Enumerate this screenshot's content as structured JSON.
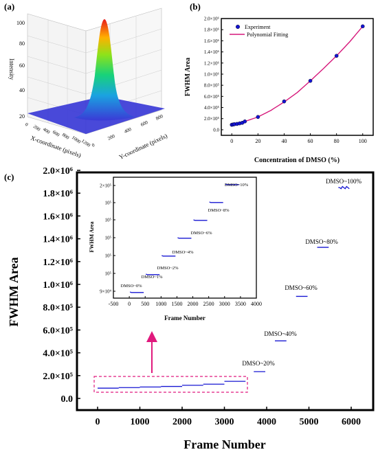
{
  "panels": {
    "a": {
      "label": "(a)",
      "zlabel": "Intensity",
      "xlabel": "X-coordinate (pixels)",
      "ylabel": "Y-coordinate (pixels)",
      "z_ticks": [
        "20",
        "40",
        "60",
        "80",
        "100"
      ],
      "x_ticks": [
        "0",
        "200",
        "400",
        "600",
        "800",
        "1000",
        "1200"
      ],
      "y_ticks": [
        "0",
        "200",
        "400",
        "600",
        "800"
      ]
    },
    "b": {
      "label": "(b)",
      "ylabel": "FWHM Area",
      "xlabel": "Concentration of DMSO (%)",
      "x_ticks": [
        "0",
        "20",
        "40",
        "60",
        "80",
        "100"
      ],
      "y_ticks": [
        "2.0×10⁶",
        "1.8×10⁶",
        "1.6×10⁶",
        "1.4×10⁶",
        "1.2×10⁶",
        "1.0×10⁶",
        "8.0×10⁵",
        "6.0×10⁵",
        "4.0×10⁵",
        "2.0×10⁵",
        "0.0"
      ],
      "legend": {
        "experiment": "Experiment",
        "fit": "Polynomial Fitting"
      }
    },
    "c": {
      "label": "(c)",
      "ylabel": "FWHM Area",
      "xlabel": "Frame Number",
      "x_ticks": [
        "0",
        "1000",
        "2000",
        "3000",
        "4000",
        "5000",
        "6000"
      ],
      "y_ticks": [
        "2.0×10⁶",
        "1.8×10⁶",
        "1.6×10⁶",
        "1.4×10⁶",
        "1.2×10⁶",
        "1.0×10⁶",
        "8.0×10⁵",
        "6.0×10⁵",
        "4.0×10⁵",
        "2.0×10⁵",
        "0.0"
      ],
      "step_labels": [
        "DMSO~20%",
        "DMSO~40%",
        "DMSO~60%",
        "DMSO~80%",
        "DMSO~100%"
      ],
      "inset": {
        "ylabel": "FWHM Area",
        "xlabel": "Frame Number",
        "x_ticks": [
          "-500",
          "0",
          "500",
          "1000",
          "1500",
          "2000",
          "2500",
          "3000",
          "3500",
          "4000"
        ],
        "y_ticks": [
          "9×10⁴",
          "10⁵",
          "10⁵",
          "10⁵",
          "10⁵",
          "10⁵",
          "10⁵",
          "10⁵",
          "2×10⁵"
        ],
        "step_labels": [
          "DMSO~0%",
          "DMSO~1%",
          "DMSO~2%",
          "DMSO~4%",
          "DMSO~6%",
          "DMSO~8%",
          "DMSO~10%"
        ]
      }
    }
  },
  "colors": {
    "series": "#1414d2",
    "fit": "#d6177a",
    "arrow": "#e0197d",
    "highlight": "#e0197d"
  },
  "chart_data": [
    {
      "type": "area",
      "panel": "a",
      "description_type": "3D Gaussian surface",
      "peak_intensity": 105,
      "baseline_intensity": 20,
      "xlim": [
        0,
        1200
      ],
      "ylim": [
        0,
        800
      ],
      "zlim": [
        20,
        100
      ]
    },
    {
      "type": "scatter",
      "panel": "b",
      "series": [
        {
          "name": "Experiment",
          "x": [
            0,
            1,
            2,
            4,
            6,
            8,
            10,
            20,
            40,
            60,
            80,
            100
          ],
          "y": [
            90000,
            95000,
            100000,
            105000,
            115000,
            125000,
            150000,
            230000,
            510000,
            880000,
            1330000,
            1860000
          ]
        },
        {
          "name": "Polynomial Fitting",
          "type": "line",
          "x": [
            0,
            10,
            20,
            30,
            40,
            50,
            60,
            70,
            80,
            90,
            100
          ],
          "y": [
            95000,
            150000,
            230000,
            350000,
            500000,
            670000,
            880000,
            1100000,
            1330000,
            1580000,
            1860000
          ]
        }
      ],
      "xlim": [
        -8,
        108
      ],
      "ylim": [
        -100000,
        2000000
      ],
      "legend_position": "top-left"
    },
    {
      "type": "line",
      "panel": "c",
      "segments": [
        {
          "x": [
            0,
            500
          ],
          "y": 90000
        },
        {
          "x": [
            500,
            1000
          ],
          "y": 95000
        },
        {
          "x": [
            1000,
            1500
          ],
          "y": 100000
        },
        {
          "x": [
            1500,
            2000
          ],
          "y": 105000
        },
        {
          "x": [
            2000,
            2500
          ],
          "y": 115000
        },
        {
          "x": [
            2500,
            3000
          ],
          "y": 125000
        },
        {
          "x": [
            3000,
            3500
          ],
          "y": 150000
        },
        {
          "x": [
            3500,
            4000
          ],
          "y": 235000
        },
        {
          "x": [
            4000,
            4500
          ],
          "y": 505000
        },
        {
          "x": [
            4500,
            5000
          ],
          "y": 895000
        },
        {
          "x": [
            5000,
            5500
          ],
          "y": 1325000
        },
        {
          "x": [
            5500,
            6000
          ],
          "y": 1850000
        }
      ],
      "xlim": [
        -250,
        6300
      ],
      "ylim": [
        -100000,
        2000000
      ]
    },
    {
      "type": "line",
      "panel": "c-inset",
      "segments": [
        {
          "x": [
            0,
            500
          ],
          "y": 90000
        },
        {
          "x": [
            500,
            1000
          ],
          "y": 95000
        },
        {
          "x": [
            1000,
            1500
          ],
          "y": 100000
        },
        {
          "x": [
            1500,
            2000
          ],
          "y": 105000
        },
        {
          "x": [
            2000,
            2500
          ],
          "y": 115000
        },
        {
          "x": [
            2500,
            3000
          ],
          "y": 125000
        },
        {
          "x": [
            3000,
            3500
          ],
          "y": 150000
        }
      ],
      "xlim": [
        -500,
        4000
      ]
    }
  ]
}
